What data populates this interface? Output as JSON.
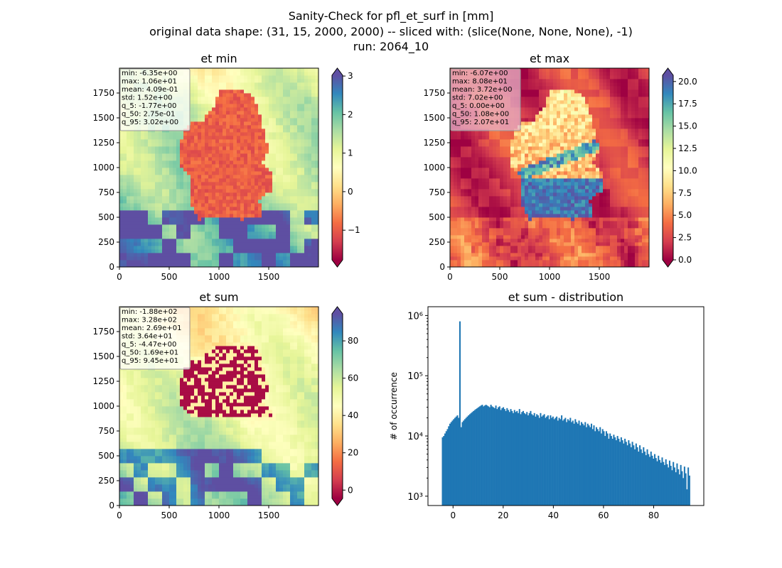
{
  "figure": {
    "title_lines": [
      "Sanity-Check for pfl_et_surf in [mm]",
      "original data shape: (31, 15, 2000, 2000) -- sliced with: (slice(None, None, None), -1)",
      "run: 2064_10"
    ]
  },
  "chart_data": [
    {
      "type": "heatmap",
      "title": "et min",
      "xlim": [
        0,
        2000
      ],
      "ylim": [
        0,
        2000
      ],
      "xticks": [
        "0",
        "500",
        "1000",
        "1500"
      ],
      "yticks": [
        "0",
        "250",
        "500",
        "750",
        "1000",
        "1250",
        "1500",
        "1750"
      ],
      "colorbar": {
        "cmap": "Spectral",
        "min": -1.77,
        "max": 3.02,
        "ticks": [
          "−1",
          "0",
          "1",
          "2",
          "3"
        ],
        "extend": "both"
      },
      "stats": [
        "min: -6.35e+00",
        "max: 1.06e+01",
        "mean: 4.09e-01",
        "std: 1.52e+00",
        "q_5: -1.77e+00",
        "q_50: 2.75e-01",
        "q_95: 3.02e+00"
      ],
      "stats_box_color": "#ffffff"
    },
    {
      "type": "heatmap",
      "title": "et max",
      "xlim": [
        0,
        2000
      ],
      "ylim": [
        0,
        2000
      ],
      "xticks": [
        "0",
        "500",
        "1000",
        "1500"
      ],
      "yticks": [
        "0",
        "250",
        "500",
        "750",
        "1000",
        "1250",
        "1500",
        "1750"
      ],
      "colorbar": {
        "cmap": "Spectral",
        "min": 0,
        "max": 20.7,
        "ticks": [
          "0.0",
          "2.5",
          "5.0",
          "7.5",
          "10.0",
          "12.5",
          "15.0",
          "17.5",
          "20.0"
        ],
        "extend": "both"
      },
      "stats": [
        "min: -6.07e+00",
        "max: 8.08e+01",
        "mean: 3.72e+00",
        "std: 7.02e+00",
        "q_5: 0.00e+00",
        "q_50: 1.08e+00",
        "q_95: 2.07e+01"
      ],
      "stats_box_color": "#e8b4c8"
    },
    {
      "type": "heatmap",
      "title": "et sum",
      "xlim": [
        0,
        2000
      ],
      "ylim": [
        0,
        2000
      ],
      "xticks": [
        "0",
        "500",
        "1000",
        "1500"
      ],
      "yticks": [
        "0",
        "250",
        "500",
        "750",
        "1000",
        "1250",
        "1500",
        "1750"
      ],
      "colorbar": {
        "cmap": "Spectral",
        "min": -4.47,
        "max": 94.5,
        "ticks": [
          "0",
          "20",
          "40",
          "60",
          "80"
        ],
        "extend": "both"
      },
      "stats": [
        "min: -1.88e+02",
        "max: 3.28e+02",
        "mean: 2.69e+01",
        "std: 3.64e+01",
        "q_5: -4.47e+00",
        "q_50: 1.69e+01",
        "q_95: 9.45e+01"
      ],
      "stats_box_color": "#ffffff"
    },
    {
      "type": "bar",
      "title": "et sum - distribution",
      "ylabel": "# of occurrence",
      "yscale": "log",
      "xlim": [
        -10,
        100
      ],
      "ylim": [
        700,
        1400000
      ],
      "xticks": [
        0,
        20,
        40,
        60,
        80
      ],
      "yticks": [
        {
          "value": 1000,
          "label": "10³"
        },
        {
          "value": 10000,
          "label": "10⁴"
        },
        {
          "value": 100000,
          "label": "10⁵"
        },
        {
          "value": 1000000,
          "label": "10⁶"
        }
      ],
      "bar_color": "#1f77b4",
      "bins": {
        "start": -4.47,
        "end": 94.5
      },
      "counts": [
        9500,
        10000,
        11000,
        12000,
        13000,
        14500,
        16000,
        17000,
        18000,
        19000,
        20000,
        21000,
        22000,
        20000,
        800000,
        14000,
        17000,
        18000,
        19000,
        20000,
        21000,
        22000,
        23000,
        24000,
        25000,
        26000,
        27000,
        28000,
        29000,
        30000,
        31000,
        32000,
        33000,
        31000,
        32000,
        33000,
        32000,
        31000,
        30000,
        33000,
        31000,
        30000,
        29000,
        32000,
        28000,
        30000,
        31000,
        27000,
        29000,
        30000,
        28000,
        26000,
        29000,
        27000,
        25000,
        28000,
        26000,
        24000,
        27000,
        25000,
        26000,
        24000,
        28000,
        23000,
        25000,
        26000,
        24000,
        23000,
        25000,
        22000,
        24000,
        26000,
        23000,
        22000,
        24000,
        21000,
        23000,
        22000,
        20000,
        24000,
        21000,
        22000,
        23000,
        20000,
        21000,
        22000,
        19000,
        22000,
        20000,
        21000,
        19000,
        20000,
        21000,
        18000,
        20000,
        19000,
        22000,
        18000,
        19000,
        20000,
        17000,
        19000,
        18000,
        20000,
        17000,
        18000,
        16000,
        19000,
        17000,
        16000,
        18000,
        15000,
        17000,
        16000,
        15000,
        17000,
        14000,
        16000,
        15000,
        14000,
        16000,
        13000,
        15000,
        12000,
        14000,
        13000,
        12000,
        14000,
        11000,
        13000,
        12000,
        10000,
        12000,
        11000,
        9000,
        11000,
        10000,
        9000,
        10500,
        9500,
        8500,
        10000,
        9000,
        8000,
        9500,
        8500,
        7500,
        9000,
        8000,
        7000,
        8500,
        7500,
        6500,
        8000,
        7000,
        6000,
        7500,
        6500,
        5500,
        7000,
        6000,
        5200,
        6500,
        5500,
        4800,
        6000,
        5000,
        4500,
        5500,
        4700,
        4200,
        5000,
        4300,
        3800,
        4700,
        4000,
        3600,
        4400,
        3700,
        3300,
        4100,
        3400,
        3000,
        3900,
        3200,
        2700,
        3700,
        3000,
        2500,
        3500,
        2800,
        2300,
        3300,
        2600,
        2000,
        3100,
        2400,
        1300,
        3000,
        2200
      ]
    }
  ]
}
